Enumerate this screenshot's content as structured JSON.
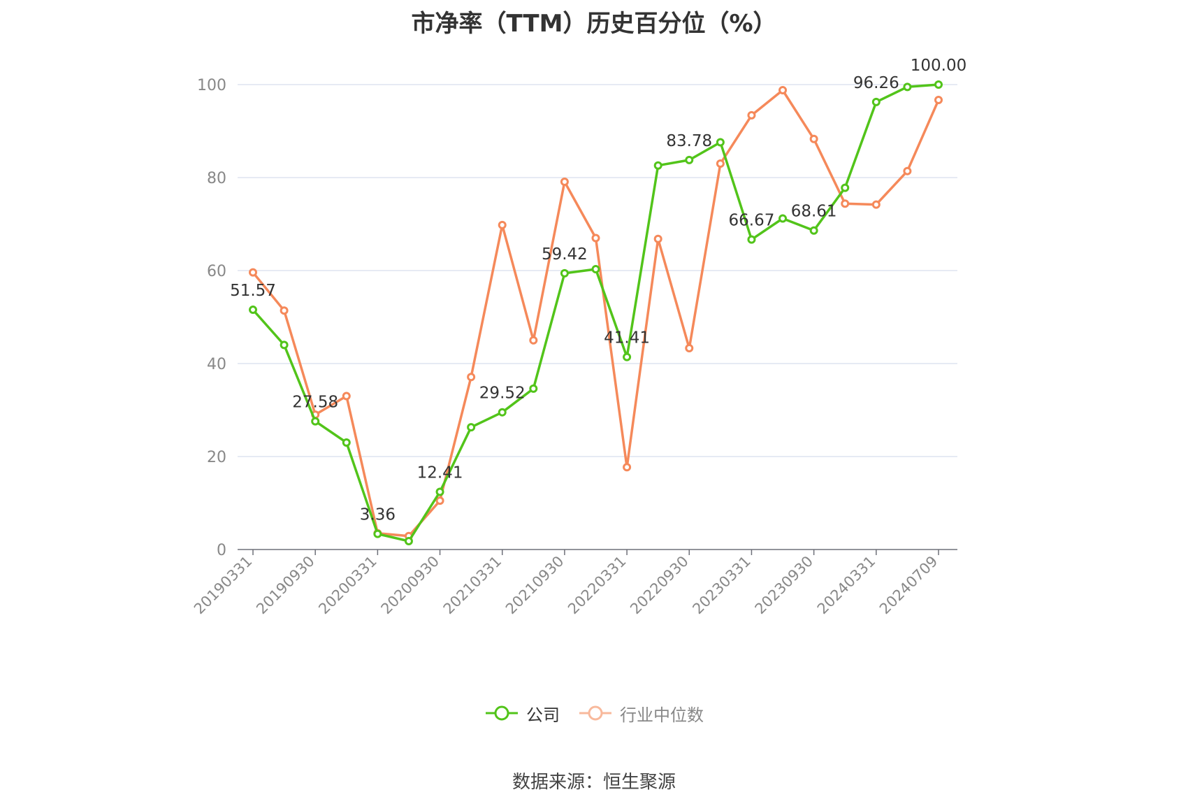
{
  "title": "市净率（TTM）历史百分位（%）",
  "source": "数据来源：恒生聚源",
  "legend": {
    "company": "公司",
    "industry": "行业中位数"
  },
  "colors": {
    "company": "#52c41a",
    "industry": "#f5895a",
    "grid": "#dde3f0",
    "axis": "#6e7079"
  },
  "chart_data": {
    "type": "line",
    "title": "市净率（TTM）历史百分位（%）",
    "xlabel": "",
    "ylabel": "",
    "ylim": [
      0,
      100
    ],
    "yticks": [
      0,
      20,
      40,
      60,
      80,
      100
    ],
    "grid": true,
    "legend_position": "bottom",
    "x": [
      "20190331",
      "20190630",
      "20190930",
      "20191231",
      "20200331",
      "20200630",
      "20200930",
      "20201231",
      "20210331",
      "20210630",
      "20210930",
      "20211231",
      "20220331",
      "20220630",
      "20220930",
      "20221231",
      "20230331",
      "20230630",
      "20230930",
      "20231231",
      "20240331",
      "20240630",
      "20240709"
    ],
    "x_tick_labels": [
      "20190331",
      "20190930",
      "20200331",
      "20200930",
      "20210331",
      "20210930",
      "20220331",
      "20220930",
      "20230331",
      "20230930",
      "20240331",
      "20240709"
    ],
    "series": [
      {
        "name": "公司",
        "values": [
          51.57,
          44.0,
          27.58,
          23.0,
          3.36,
          1.8,
          12.41,
          26.3,
          29.52,
          34.6,
          59.42,
          60.3,
          41.41,
          82.6,
          83.78,
          87.6,
          66.67,
          71.2,
          68.61,
          77.8,
          96.26,
          99.5,
          100.0
        ],
        "labels": {
          "0": "51.57",
          "2": "27.58",
          "4": "3.36",
          "6": "12.41",
          "8": "29.52",
          "10": "59.42",
          "12": "41.41",
          "14": "83.78",
          "16": "66.67",
          "18": "68.61",
          "20": "96.26",
          "22": "100.00"
        }
      },
      {
        "name": "行业中位数",
        "values": [
          59.6,
          51.4,
          29.0,
          33.0,
          3.5,
          2.9,
          10.5,
          37.1,
          69.8,
          45.0,
          79.1,
          67.0,
          17.7,
          66.8,
          43.3,
          83.0,
          93.4,
          98.8,
          88.3,
          74.4,
          74.2,
          81.4,
          96.7
        ]
      }
    ]
  }
}
